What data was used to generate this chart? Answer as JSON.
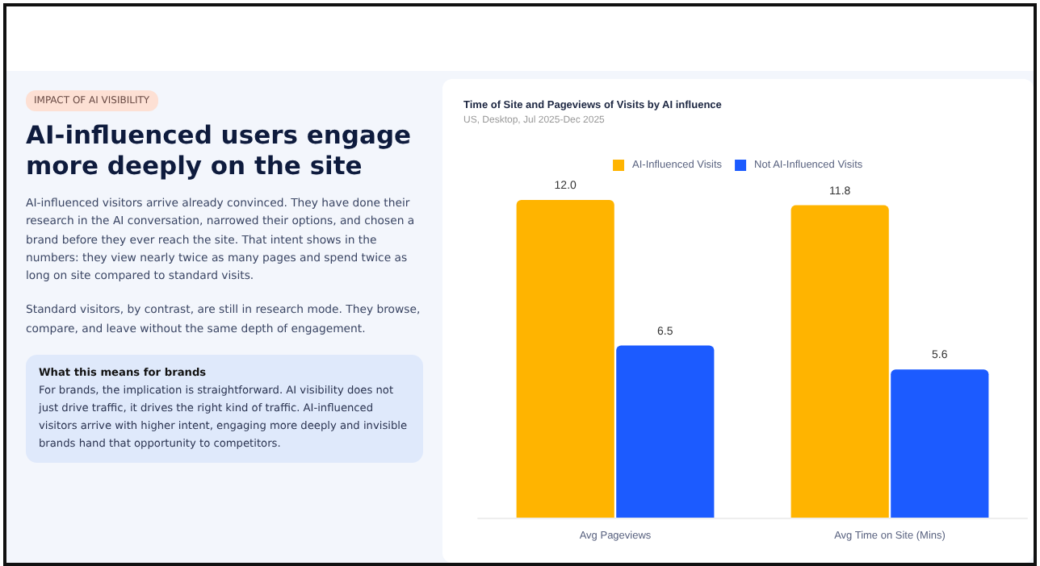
{
  "chart_data": {
    "type": "bar",
    "title": "Time of Site and Pageviews of Visits by AI influence",
    "subtitle": "US, Desktop, Jul 2025-Dec 2025",
    "categories": [
      "Avg Pageviews",
      "Avg Time on Site (Mins)"
    ],
    "series": [
      {
        "name": "AI-Influenced Visits",
        "color": "#ffb400",
        "values": [
          12.0,
          11.8
        ],
        "value_labels": [
          "12.0",
          "11.8"
        ]
      },
      {
        "name": "Not AI-Influenced Visits",
        "color": "#1c5bff",
        "values": [
          6.5,
          5.6
        ],
        "value_labels": [
          "6.5",
          "5.6"
        ]
      }
    ],
    "legend": "top",
    "annotations": [
      "IMPACT OF AI VISIBILITY",
      "AI-influenced users engage more deeply on the site",
      "AI-influenced visitors arrive already convinced. They have done their research in the AI conversation, narrowed their options, and chosen a brand before they ever reach the site. That intent shows in the numbers: they view nearly twice as many pages and spend twice as long on site compared to standard visits.",
      "Standard visitors, by contrast, are still in research mode. They browse, compare, and leave without the same depth of engagement.",
      "What this means for brands",
      "For brands, the implication is straightforward. AI visibility does not just drive traffic, it drives the right kind of traffic. AI-influenced visitors arrive with higher intent, engaging more deeply and invisible brands hand that opportunity to competitors."
    ]
  }
}
